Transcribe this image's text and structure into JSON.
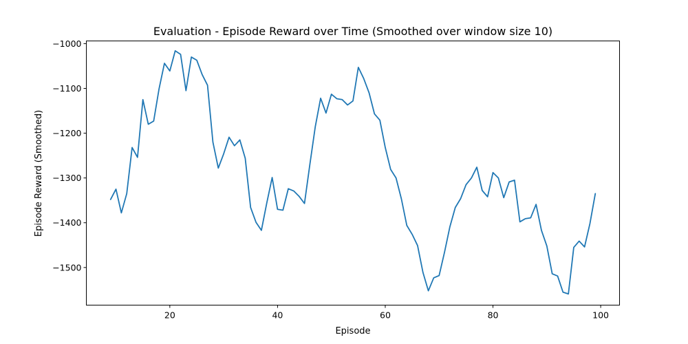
{
  "chart_data": {
    "type": "line",
    "title": "Evaluation - Episode Reward over Time (Smoothed over window size 10)",
    "xlabel": "Episode",
    "ylabel": "Episode Reward (Smoothed)",
    "xlim": [
      4.5,
      103.5
    ],
    "ylim": [
      -1584,
      -994
    ],
    "xticks": [
      20,
      40,
      60,
      80,
      100
    ],
    "yticks": [
      -1000,
      -1100,
      -1200,
      -1300,
      -1400,
      -1500
    ],
    "xtick_labels": [
      "20",
      "40",
      "60",
      "80",
      "100"
    ],
    "ytick_labels": [
      "−1000",
      "−1100",
      "−1200",
      "−1300",
      "−1400",
      "−1500"
    ],
    "grid": false,
    "legend": "none",
    "series": [
      {
        "name": "Episode Reward (Smoothed)",
        "color": "#1f77b4",
        "x": [
          9,
          10,
          11,
          12,
          13,
          14,
          15,
          16,
          17,
          18,
          19,
          20,
          21,
          22,
          23,
          24,
          25,
          26,
          27,
          28,
          29,
          30,
          31,
          32,
          33,
          34,
          35,
          36,
          37,
          38,
          39,
          40,
          41,
          42,
          43,
          44,
          45,
          46,
          47,
          48,
          49,
          50,
          51,
          52,
          53,
          54,
          55,
          56,
          57,
          58,
          59,
          60,
          61,
          62,
          63,
          64,
          65,
          66,
          67,
          68,
          69,
          70,
          71,
          72,
          73,
          74,
          75,
          76,
          77,
          78,
          79,
          80,
          81,
          82,
          83,
          84,
          85,
          86,
          87,
          88,
          89,
          90,
          91,
          92,
          93,
          94,
          95,
          96,
          97,
          98,
          99
        ],
        "values": [
          -1348,
          -1325,
          -1378,
          -1335,
          -1232,
          -1254,
          -1125,
          -1180,
          -1173,
          -1101,
          -1044,
          -1061,
          -1016,
          -1024,
          -1105,
          -1030,
          -1037,
          -1069,
          -1093,
          -1220,
          -1278,
          -1246,
          -1209,
          -1228,
          -1215,
          -1256,
          -1366,
          -1399,
          -1417,
          -1356,
          -1299,
          -1370,
          -1372,
          -1324,
          -1329,
          -1341,
          -1357,
          -1270,
          -1186,
          -1122,
          -1155,
          -1113,
          -1123,
          -1125,
          -1137,
          -1128,
          -1053,
          -1078,
          -1110,
          -1157,
          -1171,
          -1232,
          -1281,
          -1300,
          -1347,
          -1406,
          -1426,
          -1451,
          -1511,
          -1552,
          -1523,
          -1518,
          -1466,
          -1409,
          -1366,
          -1346,
          -1315,
          -1300,
          -1276,
          -1328,
          -1342,
          -1288,
          -1300,
          -1344,
          -1309,
          -1305,
          -1398,
          -1391,
          -1389,
          -1359,
          -1417,
          -1452,
          -1514,
          -1519,
          -1555,
          -1559,
          -1455,
          -1441,
          -1454,
          -1402,
          -1335
        ]
      }
    ]
  }
}
